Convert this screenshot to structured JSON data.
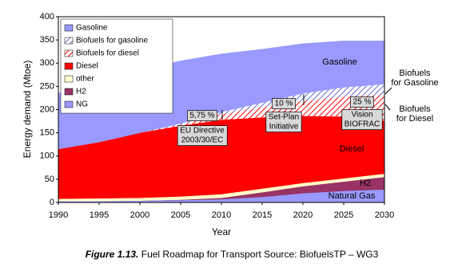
{
  "chart_data": {
    "type": "stacked-area",
    "y_label": "Energy demand (Mtoe)",
    "x_label": "Year",
    "x": [
      1990,
      1995,
      2000,
      2005,
      2010,
      2015,
      2020,
      2025,
      2030
    ],
    "xlim": [
      1990,
      2030
    ],
    "xticks": [
      1990,
      1995,
      2000,
      2005,
      2010,
      2015,
      2020,
      2025,
      2030
    ],
    "ylim": [
      0,
      400
    ],
    "yticks": [
      0,
      50,
      100,
      150,
      200,
      250,
      300,
      350,
      400
    ],
    "legend": "top-left",
    "series": [
      {
        "name": "Gasoline",
        "color": "#9999ff",
        "values": [
          120,
          132,
          135,
          135,
          125,
          115,
          107,
          100,
          93
        ]
      },
      {
        "name": "Biofuels for gasoline",
        "color": "#6666cc",
        "hatch": true,
        "values": [
          0,
          0,
          0,
          2,
          5,
          10,
          17,
          20,
          23
        ]
      },
      {
        "name": "Biofuels for diesel",
        "color": "#ff0000",
        "hatch": true,
        "values": [
          0,
          0,
          0,
          3,
          12,
          22,
          32,
          43,
          57
        ]
      },
      {
        "name": "Diesel",
        "color": "#ff0000",
        "values": [
          107,
          121,
          140,
          152,
          160,
          153,
          144,
          133,
          113
        ]
      },
      {
        "name": "other",
        "color": "#ffffcc",
        "values": [
          5,
          6,
          6,
          7,
          8,
          8,
          7,
          7,
          7
        ]
      },
      {
        "name": "H2",
        "color": "#993366",
        "values": [
          0,
          0,
          0,
          1,
          3,
          10,
          15,
          20,
          27
        ]
      },
      {
        "name": "NG",
        "color": "#9999ff",
        "values": [
          3,
          3,
          4,
          5,
          7,
          12,
          20,
          25,
          28
        ]
      }
    ],
    "annotations": [
      {
        "text": [
          "Gasoline"
        ]
      },
      {
        "text": [
          "Diesel"
        ]
      },
      {
        "text": [
          "H2"
        ]
      },
      {
        "text": [
          "Natural Gas"
        ]
      },
      {
        "text": [
          "5,75 %"
        ]
      },
      {
        "text": [
          "EU Directive",
          "2003/30/EC"
        ]
      },
      {
        "text": [
          "10 %"
        ]
      },
      {
        "text": [
          "Set-Plan",
          "Initiative"
        ]
      },
      {
        "text": [
          "25 %"
        ]
      },
      {
        "text": [
          "Vision",
          "BIOFRAC"
        ]
      },
      {
        "text": [
          "Biofuels",
          "for Gasoline"
        ]
      },
      {
        "text": [
          "Biofuels",
          "for Diesel"
        ]
      }
    ],
    "caption_label": "Figure 1.13.",
    "caption_text": "Fuel Roadmap for Transport Source: BiofuelsTP – WG3"
  }
}
